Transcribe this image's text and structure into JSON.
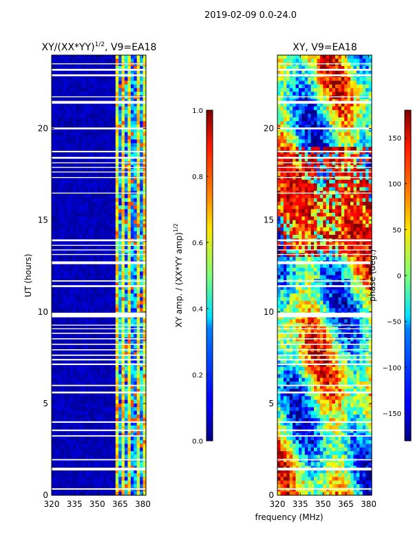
{
  "suptitle": "2019-02-09 0.0-24.0",
  "colors": {
    "flag": "#ffffff",
    "jet_low": "#00007f",
    "jet_high": "#7f0000"
  },
  "chart_data": [
    {
      "type": "heatmap",
      "title_main": "XY/(XX*YY)",
      "title_exp": "1/2",
      "title_rest": ", V9=EA18",
      "xlabel": "",
      "ylabel": "UT (hours)",
      "xlim": [
        320,
        382
      ],
      "ylim": [
        0,
        24
      ],
      "xticks": [
        "320",
        "335",
        "350",
        "365",
        "380"
      ],
      "yticks": [
        "0",
        "5",
        "10",
        "15",
        "20"
      ],
      "colorbar": {
        "label_main": "XY amp. / (XX*YY amp)",
        "label_exp": "1/2",
        "range": [
          0.0,
          1.0
        ],
        "ticks": [
          "0.0",
          "0.2",
          "0.4",
          "0.6",
          "0.8",
          "1.0"
        ]
      },
      "flagged_hours": [
        [
          0.3,
          0.38
        ],
        [
          1.35,
          1.5
        ],
        [
          1.9,
          1.97
        ],
        [
          3.2,
          3.27
        ],
        [
          3.5,
          3.58
        ],
        [
          3.95,
          4.03
        ],
        [
          5.55,
          5.65
        ],
        [
          5.95,
          6.02
        ],
        [
          7.1,
          7.18
        ],
        [
          7.35,
          7.43
        ],
        [
          7.6,
          7.67
        ],
        [
          7.9,
          7.96
        ],
        [
          8.2,
          8.26
        ],
        [
          8.5,
          8.56
        ],
        [
          8.8,
          8.86
        ],
        [
          9.05,
          9.1
        ],
        [
          9.25,
          9.3
        ],
        [
          9.7,
          9.95
        ],
        [
          11.35,
          11.45
        ],
        [
          11.65,
          11.72
        ],
        [
          12.6,
          12.75
        ],
        [
          13.1,
          13.15
        ],
        [
          13.35,
          13.4
        ],
        [
          13.6,
          13.65
        ],
        [
          13.85,
          13.95
        ],
        [
          16.45,
          16.5
        ],
        [
          17.3,
          17.35
        ],
        [
          17.6,
          17.65
        ],
        [
          17.85,
          17.9
        ],
        [
          18.1,
          18.15
        ],
        [
          18.35,
          18.45
        ],
        [
          18.7,
          18.78
        ],
        [
          19.95,
          20.05
        ],
        [
          21.35,
          21.5
        ],
        [
          21.7,
          21.75
        ],
        [
          22.85,
          22.95
        ],
        [
          23.15,
          23.25
        ],
        [
          23.5,
          23.55
        ]
      ],
      "bright_band_mhz": [
        362,
        382
      ]
    },
    {
      "type": "heatmap",
      "title_main": "XY, V9=EA18",
      "title_exp": "",
      "title_rest": "",
      "xlabel": "",
      "ylabel": "",
      "xlim": [
        320,
        382
      ],
      "ylim": [
        0,
        24
      ],
      "xticks": [
        "320",
        "335",
        "350",
        "365",
        "380"
      ],
      "yticks": [
        "0",
        "5",
        "10",
        "15",
        "20"
      ],
      "colorbar": {
        "label_main": "phase (deg.)",
        "label_exp": "",
        "range": [
          -180,
          180
        ],
        "ticks": [
          "−150",
          "−100",
          "−50",
          "0",
          "50",
          "100",
          "150"
        ]
      },
      "flagged_hours": [
        [
          0.3,
          0.38
        ],
        [
          1.35,
          1.5
        ],
        [
          1.9,
          1.97
        ],
        [
          3.2,
          3.27
        ],
        [
          3.5,
          3.58
        ],
        [
          3.95,
          4.03
        ],
        [
          5.55,
          5.65
        ],
        [
          5.95,
          6.02
        ],
        [
          7.1,
          7.18
        ],
        [
          7.35,
          7.43
        ],
        [
          7.6,
          7.67
        ],
        [
          7.9,
          7.96
        ],
        [
          8.2,
          8.26
        ],
        [
          8.5,
          8.56
        ],
        [
          8.8,
          8.86
        ],
        [
          9.05,
          9.1
        ],
        [
          9.25,
          9.3
        ],
        [
          9.7,
          9.95
        ],
        [
          11.35,
          11.45
        ],
        [
          11.65,
          11.72
        ],
        [
          12.6,
          12.75
        ],
        [
          13.1,
          13.15
        ],
        [
          13.35,
          13.4
        ],
        [
          13.6,
          13.65
        ],
        [
          13.85,
          13.95
        ],
        [
          16.45,
          16.5
        ],
        [
          17.3,
          17.35
        ],
        [
          17.6,
          17.65
        ],
        [
          17.85,
          17.9
        ],
        [
          18.1,
          18.15
        ],
        [
          18.35,
          18.45
        ],
        [
          18.7,
          18.78
        ],
        [
          19.95,
          20.05
        ],
        [
          21.35,
          21.5
        ],
        [
          21.7,
          21.75
        ],
        [
          22.85,
          22.95
        ],
        [
          23.15,
          23.25
        ],
        [
          23.5,
          23.55
        ]
      ]
    }
  ],
  "shared_xlabel": "frequency (MHz)"
}
